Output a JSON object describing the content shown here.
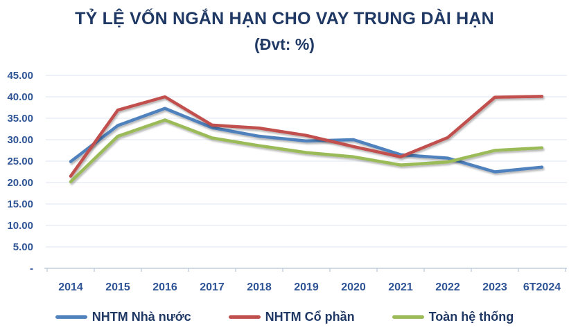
{
  "colors": {
    "title": "#1F3864",
    "axis_label": "#2F5496",
    "gridline": "#DCE6F1",
    "axis_line": "#C2CFDE"
  },
  "chart_data": {
    "type": "line",
    "title": "TỶ LỆ VỐN NGẮN HẠN CHO VAY TRUNG DÀI HẠN",
    "subtitle": "(Đvt: %)",
    "categories": [
      "2014",
      "2015",
      "2016",
      "2017",
      "2018",
      "2019",
      "2020",
      "2021",
      "2022",
      "2023",
      "6T2024"
    ],
    "series": [
      {
        "name": "NHTM Nhà nước",
        "color": "#4F81BD",
        "values": [
          24.9,
          33.3,
          37.3,
          32.8,
          30.8,
          29.7,
          30.0,
          26.5,
          25.7,
          22.5,
          23.6
        ]
      },
      {
        "name": "NHTM Cổ phần",
        "color": "#C0504D",
        "values": [
          21.5,
          36.9,
          40.0,
          33.4,
          32.7,
          31.0,
          28.4,
          26.0,
          30.5,
          39.9,
          40.1
        ]
      },
      {
        "name": "Toàn hệ thống",
        "color": "#9BBB59",
        "values": [
          20.2,
          30.8,
          34.6,
          30.4,
          28.6,
          27.0,
          26.0,
          24.1,
          24.8,
          27.5,
          28.1
        ]
      }
    ],
    "y_axis": {
      "min": 0,
      "max": 45,
      "step": 5,
      "tick_labels": [
        "-",
        "5.00",
        "10.00",
        "15.00",
        "20.00",
        "25.00",
        "30.00",
        "35.00",
        "40.00",
        "45.00"
      ]
    },
    "x_axis": {
      "label": ""
    },
    "grid": true,
    "legend_position": "bottom"
  }
}
